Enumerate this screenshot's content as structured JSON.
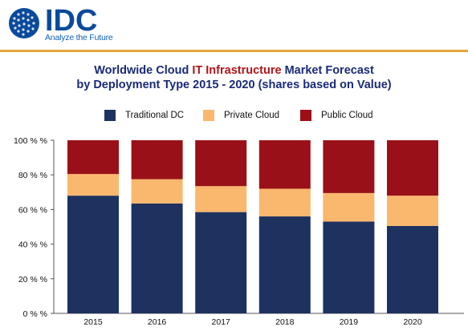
{
  "brand": {
    "logo_text": "IDC",
    "tagline": "Analyze the Future",
    "accent_color": "#e8a53c",
    "logo_color": "#0a4a9c"
  },
  "chart_title": {
    "line1_pre": "Worldwide Cloud ",
    "line1_highlight": "IT Infrastructure",
    "line1_post": " Market Forecast",
    "line2": "by Deployment Type  2015 - 2020 (shares based on Value)"
  },
  "chart_data": {
    "type": "bar",
    "stacked": true,
    "categories": [
      "2015",
      "2016",
      "2017",
      "2018",
      "2019",
      "2020"
    ],
    "series": [
      {
        "name": "Traditional DC",
        "color": "#1e3260",
        "values": [
          68,
          63.5,
          58.5,
          56,
          53,
          50.5
        ]
      },
      {
        "name": "Private Cloud",
        "color": "#f9b86e",
        "values": [
          12.5,
          14,
          15,
          16,
          16.5,
          17.5
        ]
      },
      {
        "name": "Public Cloud",
        "color": "#9a1018",
        "values": [
          19.5,
          22.5,
          26.5,
          28,
          30.5,
          32
        ]
      }
    ],
    "ylim": [
      0,
      100
    ],
    "yticks": [
      "0 % %",
      "20 % %",
      "40 % %",
      "60 % %",
      "80 % %",
      "100 % %"
    ],
    "legend_position": "top"
  }
}
